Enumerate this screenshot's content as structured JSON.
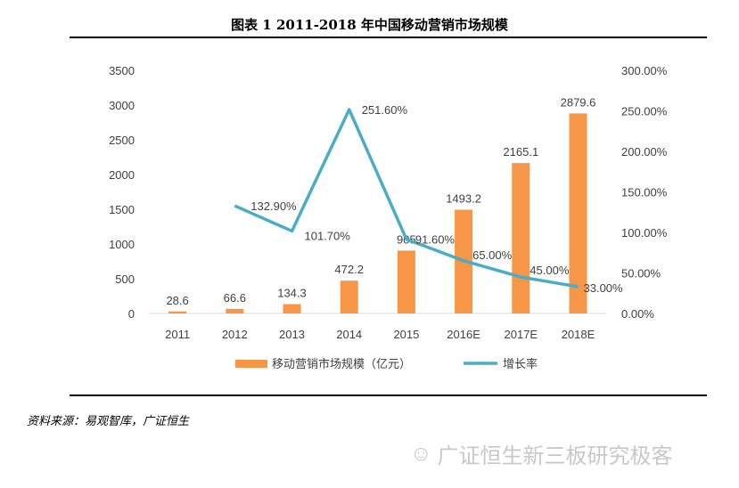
{
  "header": {
    "title": "图表 1 2011-2018 年中国移动营销市场规模"
  },
  "footer": {
    "source": "资料来源：易观智库，广证恒生",
    "watermark": "广证恒生新三板研究极客"
  },
  "chart_data": {
    "type": "bar+line",
    "title": "图表 1 2011-2018 年中国移动营销市场规模",
    "categories": [
      "2011",
      "2012",
      "2013",
      "2014",
      "2015",
      "2016E",
      "2017E",
      "2018E"
    ],
    "series": [
      {
        "name": "移动营销市场规模（亿元）",
        "type": "bar",
        "axis": "left",
        "color": "#f79646",
        "values": [
          28.6,
          66.6,
          134.3,
          472.2,
          905,
          1493.2,
          2165.1,
          2879.6
        ],
        "labels": [
          "28.6",
          "66.6",
          "134.3",
          "472.2",
          "905",
          "1493.2",
          "2165.1",
          "2879.6"
        ]
      },
      {
        "name": "增长率",
        "type": "line",
        "axis": "right",
        "color": "#4bacc6",
        "values": [
          null,
          132.9,
          101.7,
          251.6,
          91.6,
          65.0,
          45.0,
          33.0
        ],
        "labels": [
          null,
          "132.90%",
          "101.70%",
          "251.60%",
          "91.60%",
          "65.00%",
          "45.00%",
          "33.00%"
        ]
      }
    ],
    "yleft": {
      "min": 0,
      "max": 3500,
      "ticks": [
        "0",
        "500",
        "1000",
        "1500",
        "2000",
        "2500",
        "3000",
        "3500"
      ]
    },
    "yright": {
      "min": 0,
      "max": 300,
      "ticks": [
        "0.00%",
        "50.00%",
        "100.00%",
        "150.00%",
        "200.00%",
        "250.00%",
        "300.00%"
      ]
    },
    "grid": false,
    "legend": "bottom"
  }
}
